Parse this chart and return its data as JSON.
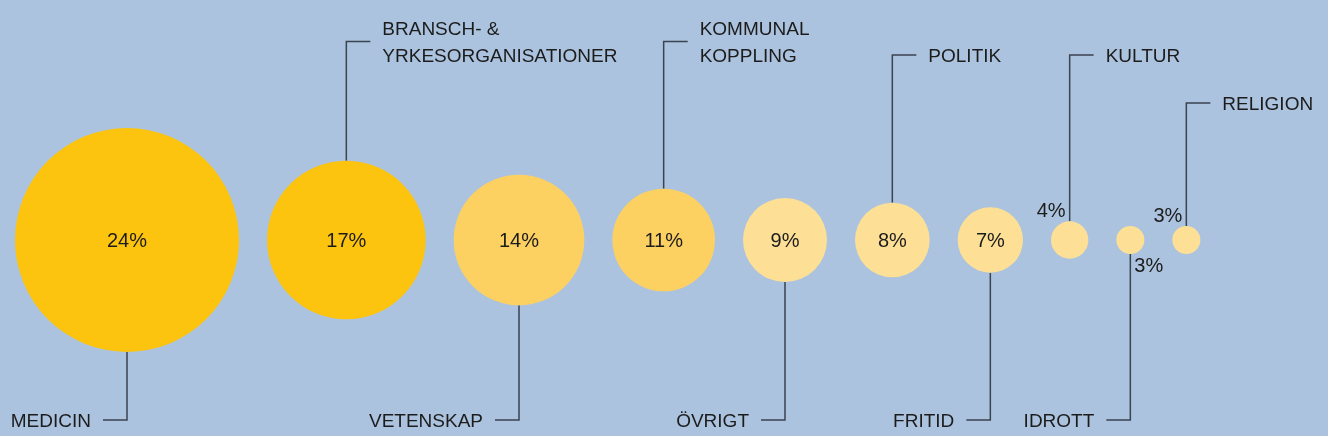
{
  "chart_data": {
    "type": "other",
    "categories": [
      "MEDICIN",
      "BRANSCH- & YRKESORGANISATIONER",
      "VETENSKAP",
      "KOMMUNAL KOPPLING",
      "ÖVRIGT",
      "POLITIK",
      "FRITID",
      "KULTUR",
      "IDROTT",
      "RELIGION"
    ],
    "values": [
      24,
      17,
      14,
      11,
      9,
      8,
      7,
      4,
      3,
      3
    ],
    "value_labels": [
      "24%",
      "17%",
      "14%",
      "11%",
      "9%",
      "8%",
      "7%",
      "4%",
      "3%",
      "3%"
    ],
    "colors": [
      "#fcc40e",
      "#fcc40e",
      "#fdd062",
      "#fdd062",
      "#fddf96",
      "#fddf96",
      "#fddf96",
      "#fddf96",
      "#fddf96",
      "#fddf96"
    ]
  }
}
